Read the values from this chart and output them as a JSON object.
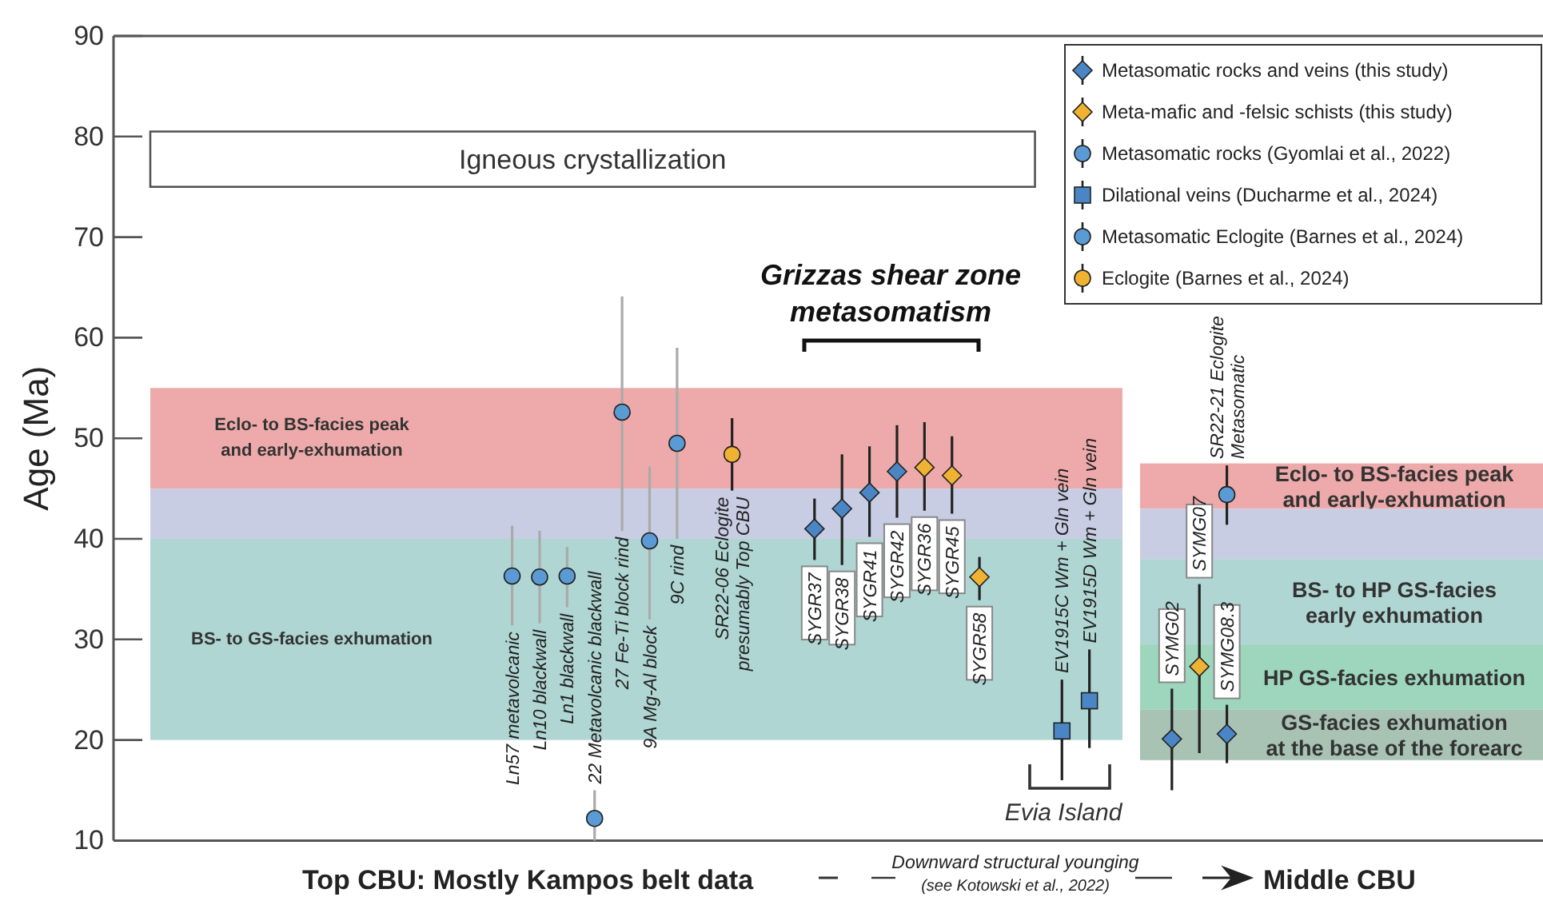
{
  "chart_data": {
    "type": "scatter",
    "ylabel": "Age (Ma)",
    "xlabel": "Top CBU: Mostly Kampos belt data",
    "ylim": [
      10,
      90
    ],
    "yticks": [
      10,
      20,
      30,
      40,
      50,
      60,
      70,
      80,
      90
    ],
    "legend": "top right",
    "tick_labels": "y",
    "categories": [
      null,
      null,
      null,
      null,
      null,
      null,
      null,
      null,
      null,
      null,
      null,
      null,
      null,
      null,
      null,
      null,
      null,
      null,
      null,
      null,
      null,
      null,
      null,
      null,
      null,
      null,
      null,
      null,
      null,
      null,
      null,
      null,
      null,
      null,
      null,
      null,
      null,
      null,
      null,
      null,
      null,
      null,
      null,
      null,
      null,
      null,
      null,
      null,
      null,
      null,
      null,
      null
    ],
    "series": [
      {
        "name": "Metasomatic rocks and veins (this study)",
        "color": "#4a86c5",
        "marker": "diamond",
        "values": [
          null,
          null,
          null,
          null,
          null,
          null,
          null,
          null,
          null,
          null,
          null,
          null,
          null,
          null,
          null,
          null,
          null,
          null,
          null,
          null,
          null,
          null,
          null,
          null,
          null,
          41.0,
          43.0,
          44.6,
          46.7,
          null,
          null,
          null,
          null,
          null,
          null,
          null,
          null,
          null,
          20.1,
          null,
          20.6,
          null,
          null,
          null,
          null,
          null,
          null,
          null,
          null,
          null,
          null,
          null
        ],
        "errors": [
          null,
          null,
          null,
          null,
          null,
          null,
          null,
          null,
          null,
          null,
          null,
          null,
          null,
          null,
          null,
          null,
          null,
          null,
          null,
          null,
          null,
          null,
          null,
          null,
          null,
          [
            37.9,
            44.0
          ],
          [
            37.4,
            48.4
          ],
          [
            40.2,
            49.2
          ],
          [
            42.1,
            51.3
          ],
          null,
          null,
          null,
          null,
          null,
          null,
          null,
          null,
          null,
          [
            15.0,
            25.1
          ],
          null,
          [
            17.7,
            23.5
          ],
          null,
          null,
          null,
          null,
          null,
          null,
          null,
          null,
          null,
          null,
          null
        ]
      },
      {
        "name": "Meta-mafic and -felsic schists (this study)",
        "color": "#f0b232",
        "marker": "diamond",
        "values": [
          null,
          null,
          null,
          null,
          null,
          null,
          null,
          null,
          null,
          null,
          null,
          null,
          null,
          null,
          null,
          null,
          null,
          null,
          null,
          null,
          null,
          null,
          null,
          null,
          null,
          null,
          null,
          null,
          null,
          47.1,
          46.3,
          36.2,
          null,
          null,
          null,
          null,
          null,
          null,
          null,
          27.3,
          null,
          null,
          null,
          null,
          null,
          null,
          null,
          null,
          null,
          null,
          null,
          null
        ],
        "errors": [
          null,
          null,
          null,
          null,
          null,
          null,
          null,
          null,
          null,
          null,
          null,
          null,
          null,
          null,
          null,
          null,
          null,
          null,
          null,
          null,
          null,
          null,
          null,
          null,
          null,
          null,
          null,
          null,
          null,
          [
            42.8,
            51.6
          ],
          [
            42.5,
            50.2
          ],
          [
            33.9,
            38.2
          ],
          null,
          null,
          null,
          null,
          null,
          null,
          null,
          [
            18.7,
            35.5
          ],
          null,
          null,
          null,
          null,
          null,
          null,
          null,
          null,
          null,
          null,
          null,
          null
        ]
      },
      {
        "name": "Metasomatic rocks (Gyomlai et al., 2022)",
        "color": "#5b9bd5",
        "marker": "circle",
        "values": [
          null,
          null,
          null,
          null,
          null,
          null,
          null,
          null,
          null,
          null,
          null,
          null,
          null,
          null,
          36.3,
          36.2,
          36.3,
          12.2,
          52.6,
          39.8,
          49.5,
          null,
          null,
          null,
          null,
          null,
          null,
          null,
          null,
          null,
          null,
          null,
          null,
          null,
          null,
          null,
          null,
          null,
          null,
          null,
          null,
          null,
          null,
          null,
          null,
          null,
          null,
          null,
          null,
          null,
          null,
          null
        ],
        "errors": [
          null,
          null,
          null,
          null,
          null,
          null,
          null,
          null,
          null,
          null,
          null,
          null,
          null,
          null,
          [
            31.4,
            41.3
          ],
          [
            31.6,
            40.8
          ],
          [
            33.2,
            39.2
          ],
          [
            10,
            15.0
          ],
          [
            40.8,
            64.1
          ],
          [
            32.0,
            47.2
          ],
          [
            40.0,
            59.0
          ],
          null,
          null,
          null,
          null,
          null,
          null,
          null,
          null,
          null,
          null,
          null,
          null,
          null,
          null,
          null,
          null,
          null,
          null,
          null,
          null,
          null,
          null,
          null,
          null,
          null,
          null,
          null,
          null,
          null,
          null,
          null
        ]
      },
      {
        "name": "Dilational veins (Ducharme et al., 2024)",
        "color": "#4a86c5",
        "marker": "square",
        "values": [
          null,
          null,
          null,
          null,
          null,
          null,
          null,
          null,
          null,
          null,
          null,
          null,
          null,
          null,
          null,
          null,
          null,
          null,
          null,
          null,
          null,
          null,
          null,
          null,
          null,
          null,
          null,
          null,
          null,
          null,
          null,
          null,
          null,
          null,
          20.9,
          23.9,
          null,
          null,
          null,
          null,
          null,
          null,
          null,
          null,
          null,
          null,
          null,
          null,
          null,
          null,
          null,
          null
        ],
        "errors": [
          null,
          null,
          null,
          null,
          null,
          null,
          null,
          null,
          null,
          null,
          null,
          null,
          null,
          null,
          null,
          null,
          null,
          null,
          null,
          null,
          null,
          null,
          null,
          null,
          null,
          null,
          null,
          null,
          null,
          null,
          null,
          null,
          null,
          null,
          [
            16.0,
            26.0
          ],
          [
            19.2,
            29.0
          ],
          null,
          null,
          null,
          null,
          null,
          null,
          null,
          null,
          null,
          null,
          null,
          null,
          null,
          null,
          null,
          null
        ]
      },
      {
        "name": "Metasomatic Eclogite (Barnes et al., 2024)",
        "color": "#5b9bd5",
        "marker": "circle",
        "values": [
          null,
          null,
          null,
          null,
          null,
          null,
          null,
          null,
          null,
          null,
          null,
          null,
          null,
          null,
          null,
          null,
          null,
          null,
          null,
          null,
          null,
          null,
          null,
          null,
          null,
          null,
          null,
          null,
          null,
          null,
          null,
          null,
          null,
          null,
          null,
          null,
          null,
          null,
          null,
          null,
          44.4,
          null,
          null,
          null,
          null,
          null,
          null,
          null,
          null,
          null,
          null,
          null
        ],
        "errors": [
          null,
          null,
          null,
          null,
          null,
          null,
          null,
          null,
          null,
          null,
          null,
          null,
          null,
          null,
          null,
          null,
          null,
          null,
          null,
          null,
          null,
          null,
          null,
          null,
          null,
          null,
          null,
          null,
          null,
          null,
          null,
          null,
          null,
          null,
          null,
          null,
          null,
          null,
          null,
          null,
          [
            41.4,
            47.3
          ],
          null,
          null,
          null,
          null,
          null,
          null,
          null,
          null,
          null,
          null,
          null
        ]
      },
      {
        "name": "Eclogite (Barnes et al., 2024)",
        "color": "#f0b232",
        "marker": "circle",
        "values": [
          null,
          null,
          null,
          null,
          null,
          null,
          null,
          null,
          null,
          null,
          null,
          null,
          null,
          null,
          null,
          null,
          null,
          null,
          null,
          null,
          null,
          null,
          48.4,
          null,
          null,
          null,
          null,
          null,
          null,
          null,
          null,
          null,
          null,
          null,
          null,
          null,
          null,
          null,
          null,
          null,
          null,
          null,
          null,
          null,
          null,
          null,
          null,
          null,
          null,
          null,
          null,
          null
        ],
        "errors": [
          null,
          null,
          null,
          null,
          null,
          null,
          null,
          null,
          null,
          null,
          null,
          null,
          null,
          null,
          null,
          null,
          null,
          null,
          null,
          null,
          null,
          null,
          [
            44.8,
            52.0
          ],
          null,
          null,
          null,
          null,
          null,
          null,
          null,
          null,
          null,
          null,
          null,
          null,
          null,
          null,
          null,
          null,
          null,
          null,
          null,
          null,
          null,
          null,
          null,
          null,
          null,
          null,
          null,
          null,
          null
        ]
      }
    ],
    "bands": [
      {
        "axis": "y",
        "from": 75,
        "to": 80.5,
        "label": "Igneous crystallization",
        "color": "#ffffff"
      },
      {
        "axis": "y",
        "from": 45,
        "to": 55,
        "label": "Eclo- to BS-facies peak\nand early-exhumation",
        "color": "#eeaaaa"
      },
      {
        "axis": "y",
        "from": 40,
        "to": 45,
        "color": "#c9cde3"
      },
      {
        "axis": "y",
        "from": 20,
        "to": 40,
        "label": "BS- to GS-facies exhumation",
        "color": "#b0d6d4"
      },
      {
        "axis": "y",
        "from": 43,
        "to": 47.5,
        "label": "Eclo- to BS-facies peak\nand early-exhumation",
        "color": "#eeaaaa"
      },
      {
        "axis": "y",
        "from": 38,
        "to": 43,
        "color": "#c9cde3"
      },
      {
        "axis": "y",
        "from": 29.5,
        "to": 38,
        "label": "BS- to HP GS-facies\nearly exhumation",
        "color": "#b0d6d4"
      },
      {
        "axis": "y",
        "from": 23,
        "to": 29.5,
        "label": "HP GS-facies exhumation",
        "color": "#9dd6bd"
      },
      {
        "axis": "y",
        "from": 18,
        "to": 23,
        "label": "GS-facies exhumation\nat the base of the forearc",
        "color": "#a8c2b4"
      }
    ],
    "annotations": [
      "Grizzas shear zone\nmetasomatism",
      "Evia Island",
      "Downward structural younging",
      "(see Kotowski et al., 2022)",
      "Middle CBU",
      "Ln57 metavolcanic",
      "Ln10 blackwall",
      "Ln1 blackwall",
      "22 Metavolcanic blackwall",
      "27 Fe-Ti  block rind",
      "9A Mg-Al  block",
      "9C rind",
      "SR22-06 Eclogite\npresumably Top CBU",
      "SYGR37",
      "SYGR38",
      "SYGR41",
      "SYGR42",
      "SYGR36",
      "SYGR45",
      "SYGR58",
      "EV1915C Wm + Gln vein",
      "EV1915D Wm + Gln vein",
      "SYMG02",
      "SYMG07",
      "SYMG08.3",
      "SR22-21 Eclogite\nMetasomatic"
    ]
  }
}
